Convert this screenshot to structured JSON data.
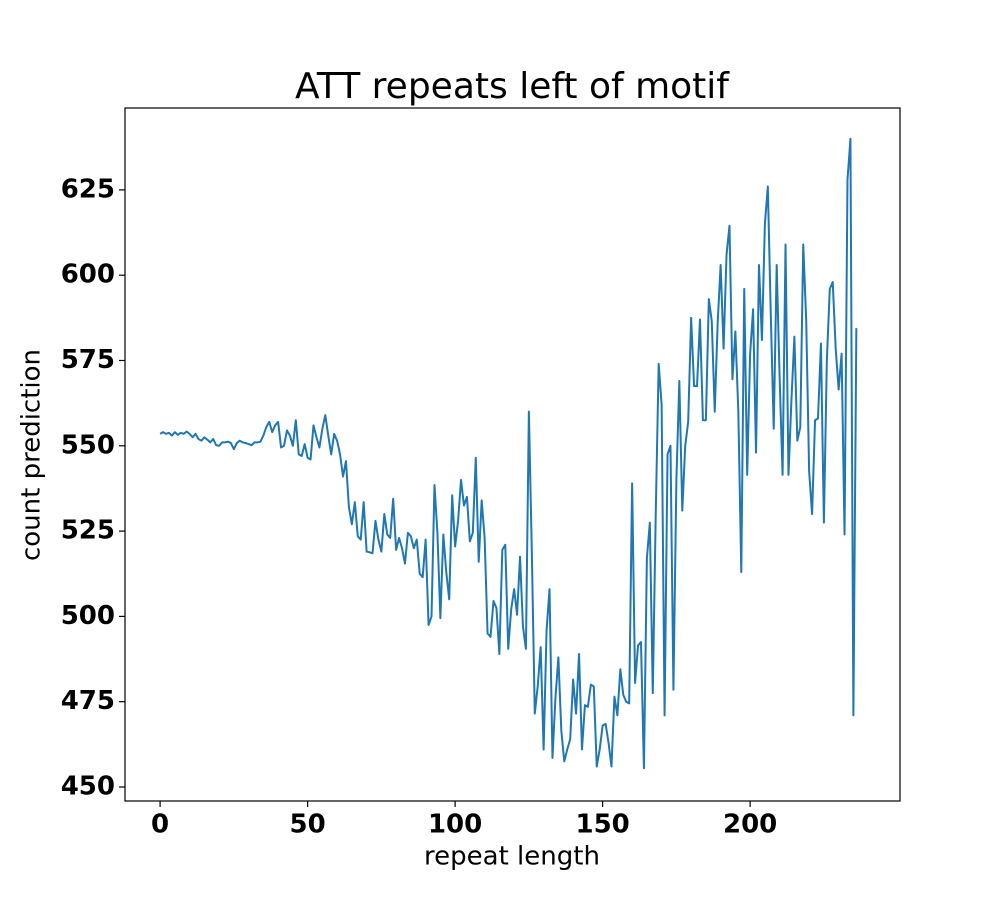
{
  "chart_data": {
    "type": "line",
    "title": "ATT repeats left of motif",
    "x_label": "repeat length",
    "y_label": "count prediction",
    "color": "#1f77b4",
    "xlim": [
      -11.9,
      250.8
    ],
    "ylim": [
      445.9,
      649.0
    ],
    "xticks": [
      0,
      50,
      100,
      150,
      200
    ],
    "yticks": [
      450,
      475,
      500,
      525,
      550,
      575,
      600,
      625
    ],
    "x": [
      0,
      1,
      2,
      3,
      4,
      5,
      6,
      7,
      8,
      9,
      10,
      11,
      12,
      13,
      14,
      15,
      16,
      17,
      18,
      19,
      20,
      21,
      22,
      23,
      24,
      25,
      26,
      27,
      28,
      29,
      30,
      31,
      32,
      33,
      34,
      35,
      36,
      37,
      38,
      39,
      40,
      41,
      42,
      43,
      44,
      45,
      46,
      47,
      48,
      49,
      50,
      51,
      52,
      53,
      54,
      55,
      56,
      57,
      58,
      59,
      60,
      61,
      62,
      63,
      64,
      65,
      66,
      67,
      68,
      69,
      70,
      71,
      72,
      73,
      74,
      75,
      76,
      77,
      78,
      79,
      80,
      81,
      82,
      83,
      84,
      85,
      86,
      87,
      88,
      89,
      90,
      91,
      92,
      93,
      94,
      95,
      96,
      97,
      98,
      99,
      100,
      101,
      102,
      103,
      104,
      105,
      106,
      107,
      108,
      109,
      110,
      111,
      112,
      113,
      114,
      115,
      116,
      117,
      118,
      119,
      120,
      121,
      122,
      123,
      124,
      125,
      126,
      127,
      128,
      129,
      130,
      131,
      132,
      133,
      134,
      135,
      136,
      137,
      138,
      139,
      140,
      141,
      142,
      143,
      144,
      145,
      146,
      147,
      148,
      149,
      150,
      151,
      152,
      153,
      154,
      155,
      156,
      157,
      158,
      159,
      160,
      161,
      162,
      163,
      164,
      165,
      166,
      167,
      168,
      169,
      170,
      171,
      172,
      173,
      174,
      175,
      176,
      177,
      178,
      179,
      180,
      181,
      182,
      183,
      184,
      185,
      186,
      187,
      188,
      189,
      190,
      191,
      192,
      193,
      194,
      195,
      196,
      197,
      198,
      199,
      200,
      201,
      202,
      203,
      204,
      205,
      206,
      207,
      208,
      209,
      210,
      211,
      212,
      213,
      214,
      215,
      216,
      217,
      218,
      219,
      220,
      221,
      222,
      223,
      224,
      225,
      226,
      227,
      228,
      229,
      230,
      231,
      232,
      233,
      234,
      235,
      236
    ],
    "values": [
      553.5,
      554,
      553.5,
      553.8,
      553,
      554,
      553.2,
      553.8,
      553.5,
      554.2,
      553.5,
      552.5,
      553.5,
      552,
      551.5,
      552.5,
      551.8,
      551,
      552,
      550.2,
      550,
      551,
      551,
      551.2,
      550.8,
      549,
      550.8,
      551.5,
      551,
      550.8,
      550.5,
      550.2,
      551,
      551,
      551.2,
      553,
      555.5,
      557,
      554,
      556,
      557,
      549.5,
      550,
      554.5,
      553,
      550,
      557.5,
      547.5,
      547,
      550.5,
      546.5,
      546,
      556,
      552.5,
      549.5,
      555,
      559,
      553,
      547.5,
      553.5,
      551.5,
      547.5,
      541,
      545.5,
      532,
      527,
      533.5,
      523.5,
      522.5,
      533.5,
      519,
      518.8,
      518.5,
      528,
      522.5,
      519,
      530,
      524,
      523,
      534.5,
      519.5,
      523,
      520,
      515.5,
      524.5,
      523.5,
      520,
      522.5,
      512.5,
      511.5,
      522.5,
      497.5,
      500,
      538.5,
      524.5,
      499.5,
      524,
      513,
      505,
      535.5,
      520.5,
      528,
      540,
      532.5,
      535,
      522,
      524.5,
      546.5,
      516,
      534,
      523,
      495,
      494,
      504.5,
      502.5,
      489,
      519.5,
      521,
      490.5,
      502,
      508,
      500.5,
      517.5,
      497,
      490.5,
      560,
      519,
      471.5,
      479.5,
      491,
      461,
      496,
      508,
      458.5,
      476,
      488,
      466.5,
      457.5,
      461,
      464,
      481.5,
      471.5,
      489,
      461,
      474,
      473.5,
      480,
      479.5,
      456,
      461,
      468,
      468.5,
      463,
      456,
      476.5,
      471,
      484.5,
      477,
      475,
      474.5,
      539,
      480.5,
      491.5,
      492.5,
      455.5,
      517,
      527.5,
      477.5,
      530,
      574,
      562,
      471,
      547.5,
      550,
      478.5,
      540,
      569,
      531,
      550,
      557,
      587.5,
      567.5,
      567.5,
      587,
      557.5,
      557.5,
      593,
      586.5,
      560,
      586,
      603,
      578.5,
      606,
      614.5,
      569.5,
      583.5,
      560,
      513,
      596,
      541.5,
      577,
      590,
      548,
      603,
      581,
      615,
      626,
      588.5,
      555,
      603,
      570,
      541.5,
      609,
      541.5,
      563.5,
      582,
      551.5,
      555.5,
      609,
      587,
      542.5,
      530,
      557.5,
      558,
      580,
      527.5,
      575,
      596,
      598,
      578.5,
      566.5,
      577,
      524,
      628,
      640,
      471,
      584.5
    ]
  }
}
